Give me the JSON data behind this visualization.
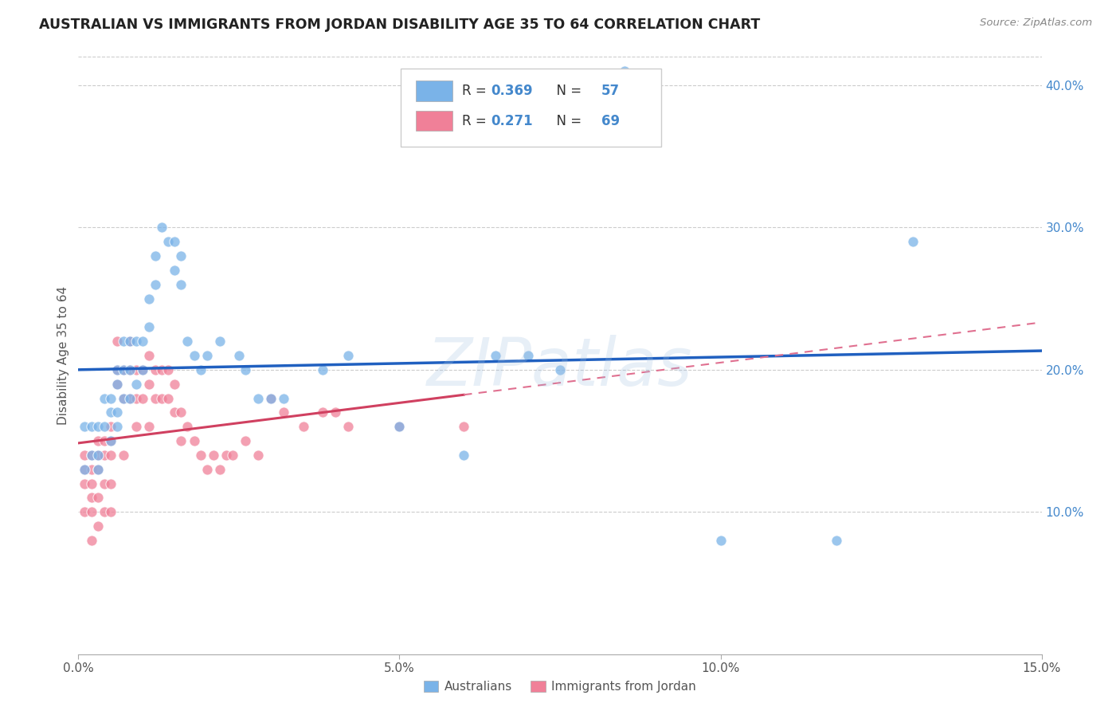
{
  "title": "AUSTRALIAN VS IMMIGRANTS FROM JORDAN DISABILITY AGE 35 TO 64 CORRELATION CHART",
  "source": "Source: ZipAtlas.com",
  "ylabel": "Disability Age 35 to 64",
  "x_min": 0.0,
  "x_max": 0.15,
  "y_min": 0.0,
  "y_max": 0.42,
  "x_ticks": [
    0.0,
    0.05,
    0.1,
    0.15
  ],
  "x_tick_labels": [
    "0.0%",
    "5.0%",
    "10.0%",
    "15.0%"
  ],
  "y_ticks_right": [
    0.1,
    0.2,
    0.3,
    0.4
  ],
  "y_tick_labels_right": [
    "10.0%",
    "20.0%",
    "30.0%",
    "40.0%"
  ],
  "watermark": "ZIPatlas",
  "australians_color": "#7ab3e8",
  "jordan_color": "#f08098",
  "trend_aus_color": "#2060c0",
  "trend_jordan_solid_color": "#d04060",
  "trend_jordan_dashed_color": "#e07090",
  "aus_R": 0.369,
  "aus_N": 57,
  "jordan_R": 0.271,
  "jordan_N": 69,
  "australians_x": [
    0.001,
    0.001,
    0.002,
    0.002,
    0.003,
    0.003,
    0.003,
    0.004,
    0.004,
    0.005,
    0.005,
    0.005,
    0.006,
    0.006,
    0.006,
    0.006,
    0.007,
    0.007,
    0.007,
    0.008,
    0.008,
    0.008,
    0.009,
    0.009,
    0.01,
    0.01,
    0.011,
    0.011,
    0.012,
    0.012,
    0.013,
    0.014,
    0.015,
    0.015,
    0.016,
    0.016,
    0.017,
    0.018,
    0.019,
    0.02,
    0.022,
    0.025,
    0.026,
    0.028,
    0.03,
    0.032,
    0.06,
    0.065,
    0.07,
    0.075,
    0.085,
    0.1,
    0.118,
    0.13,
    0.038,
    0.042,
    0.05
  ],
  "australians_y": [
    0.16,
    0.13,
    0.16,
    0.14,
    0.16,
    0.14,
    0.13,
    0.18,
    0.16,
    0.18,
    0.17,
    0.15,
    0.2,
    0.19,
    0.17,
    0.16,
    0.22,
    0.2,
    0.18,
    0.22,
    0.2,
    0.18,
    0.22,
    0.19,
    0.22,
    0.2,
    0.25,
    0.23,
    0.28,
    0.26,
    0.3,
    0.29,
    0.29,
    0.27,
    0.28,
    0.26,
    0.22,
    0.21,
    0.2,
    0.21,
    0.22,
    0.21,
    0.2,
    0.18,
    0.18,
    0.18,
    0.14,
    0.21,
    0.21,
    0.2,
    0.41,
    0.08,
    0.08,
    0.29,
    0.2,
    0.21,
    0.16
  ],
  "jordan_x": [
    0.001,
    0.001,
    0.001,
    0.001,
    0.002,
    0.002,
    0.002,
    0.002,
    0.002,
    0.002,
    0.003,
    0.003,
    0.003,
    0.003,
    0.003,
    0.004,
    0.004,
    0.004,
    0.004,
    0.005,
    0.005,
    0.005,
    0.005,
    0.005,
    0.006,
    0.006,
    0.006,
    0.007,
    0.007,
    0.007,
    0.008,
    0.008,
    0.008,
    0.009,
    0.009,
    0.009,
    0.01,
    0.01,
    0.011,
    0.011,
    0.011,
    0.012,
    0.012,
    0.013,
    0.013,
    0.014,
    0.014,
    0.015,
    0.015,
    0.016,
    0.016,
    0.017,
    0.018,
    0.019,
    0.02,
    0.021,
    0.022,
    0.023,
    0.024,
    0.026,
    0.028,
    0.03,
    0.032,
    0.035,
    0.038,
    0.04,
    0.042,
    0.05,
    0.06
  ],
  "jordan_y": [
    0.14,
    0.13,
    0.12,
    0.1,
    0.14,
    0.13,
    0.12,
    0.11,
    0.1,
    0.08,
    0.15,
    0.14,
    0.13,
    0.11,
    0.09,
    0.15,
    0.14,
    0.12,
    0.1,
    0.16,
    0.15,
    0.14,
    0.12,
    0.1,
    0.22,
    0.2,
    0.19,
    0.2,
    0.18,
    0.14,
    0.22,
    0.2,
    0.18,
    0.2,
    0.18,
    0.16,
    0.2,
    0.18,
    0.21,
    0.19,
    0.16,
    0.2,
    0.18,
    0.2,
    0.18,
    0.2,
    0.18,
    0.19,
    0.17,
    0.17,
    0.15,
    0.16,
    0.15,
    0.14,
    0.13,
    0.14,
    0.13,
    0.14,
    0.14,
    0.15,
    0.14,
    0.18,
    0.17,
    0.16,
    0.17,
    0.17,
    0.16,
    0.16,
    0.16
  ],
  "background_color": "#ffffff",
  "grid_color": "#cccccc",
  "title_color": "#222222",
  "source_color": "#888888",
  "legend_R_color": "#4488cc",
  "legend_N_color": "#4488cc"
}
